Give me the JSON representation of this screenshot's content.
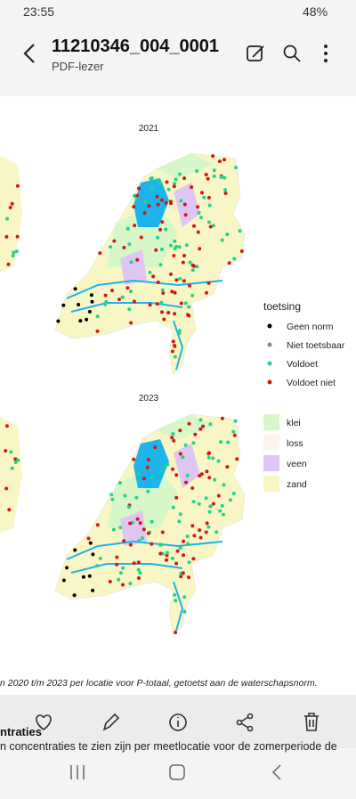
{
  "status_bar": {
    "time": "23:55",
    "battery": "48%"
  },
  "app_bar": {
    "title": "11210346_004_0001",
    "subtitle": "PDF-lezer"
  },
  "document": {
    "maps": [
      {
        "title": "2021"
      },
      {
        "title": "2023"
      }
    ],
    "legend": {
      "title": "toetsing",
      "items": [
        "Geen norm",
        "Niet toetsbaar",
        "Voldoet",
        "Voldoet niet"
      ]
    },
    "soil_legend": {
      "items": [
        "klei",
        "loss",
        "veen",
        "zand"
      ]
    },
    "caption": "n 2020 t/m 2023 per locatie voor P-totaal, getoetst aan de waterschapsnorm.",
    "section_heading": "ntraties",
    "body_text": "n concentraties te zien zijn per meetlocatie voor de zomerperiode de"
  }
}
